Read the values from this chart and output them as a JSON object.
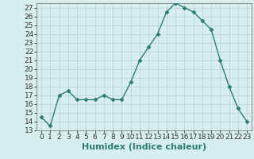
{
  "x": [
    0,
    1,
    2,
    3,
    4,
    5,
    6,
    7,
    8,
    9,
    10,
    11,
    12,
    13,
    14,
    15,
    16,
    17,
    18,
    19,
    20,
    21,
    22,
    23
  ],
  "y": [
    14.5,
    13.5,
    17.0,
    17.5,
    16.5,
    16.5,
    16.5,
    17.0,
    16.5,
    16.5,
    18.5,
    21.0,
    22.5,
    24.0,
    26.5,
    27.5,
    27.0,
    26.5,
    25.5,
    24.5,
    21.0,
    18.0,
    15.5,
    14.0
  ],
  "line_color": "#2e7d6e",
  "marker": "D",
  "marker_size": 2.5,
  "bg_color": "#d6eeee",
  "grid_color": "#b8d4d4",
  "xlabel": "Humidex (Indice chaleur)",
  "xlim": [
    -0.5,
    23.5
  ],
  "ylim": [
    13,
    27.5
  ],
  "yticks": [
    13,
    14,
    15,
    16,
    17,
    18,
    19,
    20,
    21,
    22,
    23,
    24,
    25,
    26,
    27
  ],
  "xticks": [
    0,
    1,
    2,
    3,
    4,
    5,
    6,
    7,
    8,
    9,
    10,
    11,
    12,
    13,
    14,
    15,
    16,
    17,
    18,
    19,
    20,
    21,
    22,
    23
  ],
  "xlabel_fontsize": 8,
  "tick_fontsize": 6.5,
  "line_width": 1.0
}
